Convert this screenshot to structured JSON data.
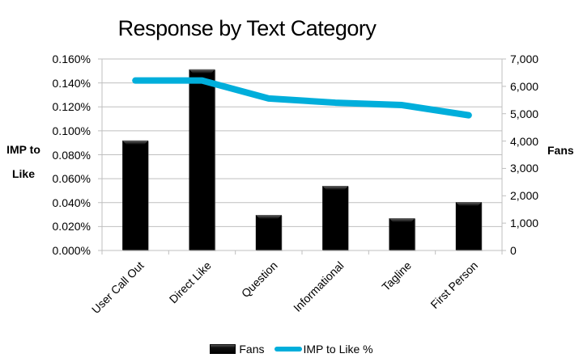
{
  "chart_data": {
    "type": "bar+line",
    "title": "Response by Text Category",
    "xlabel": "",
    "categories": [
      "User Call Out",
      "Direct Like",
      "Question",
      "Informational",
      "Tagline",
      "First Person"
    ],
    "series": [
      {
        "name": "Fans",
        "type": "bar",
        "axis": "right",
        "color": "#000000",
        "values": [
          4020,
          6620,
          1300,
          2360,
          1180,
          1770
        ]
      },
      {
        "name": "IMP to Like %",
        "type": "line",
        "axis": "left",
        "color": "#00AEDB",
        "values": [
          0.142,
          0.142,
          0.127,
          0.1235,
          0.1215,
          0.113
        ]
      }
    ],
    "ylabel_left": "IMP to Like",
    "ylabel_right": "Fans",
    "ylim_left": [
      0,
      0.16
    ],
    "ylim_right": [
      0,
      7000
    ],
    "yticks_left": [
      "0.000%",
      "0.020%",
      "0.040%",
      "0.060%",
      "0.080%",
      "0.100%",
      "0.120%",
      "0.140%",
      "0.160%"
    ],
    "yticks_right": [
      "0",
      "1,000",
      "2,000",
      "3,000",
      "4,000",
      "5,000",
      "6,000",
      "7,000"
    ],
    "grid": true,
    "legend_position": "bottom"
  },
  "title": "Response by Text Category",
  "axes": {
    "left_title_line1": "IMP to",
    "left_title_line2": "Like",
    "right_title": "Fans"
  },
  "legend": {
    "fans": "Fans",
    "imp": "IMP to Like %"
  },
  "colors": {
    "line": "#00AEDB",
    "bar": "#000000",
    "grid": "#BFBFBF"
  }
}
